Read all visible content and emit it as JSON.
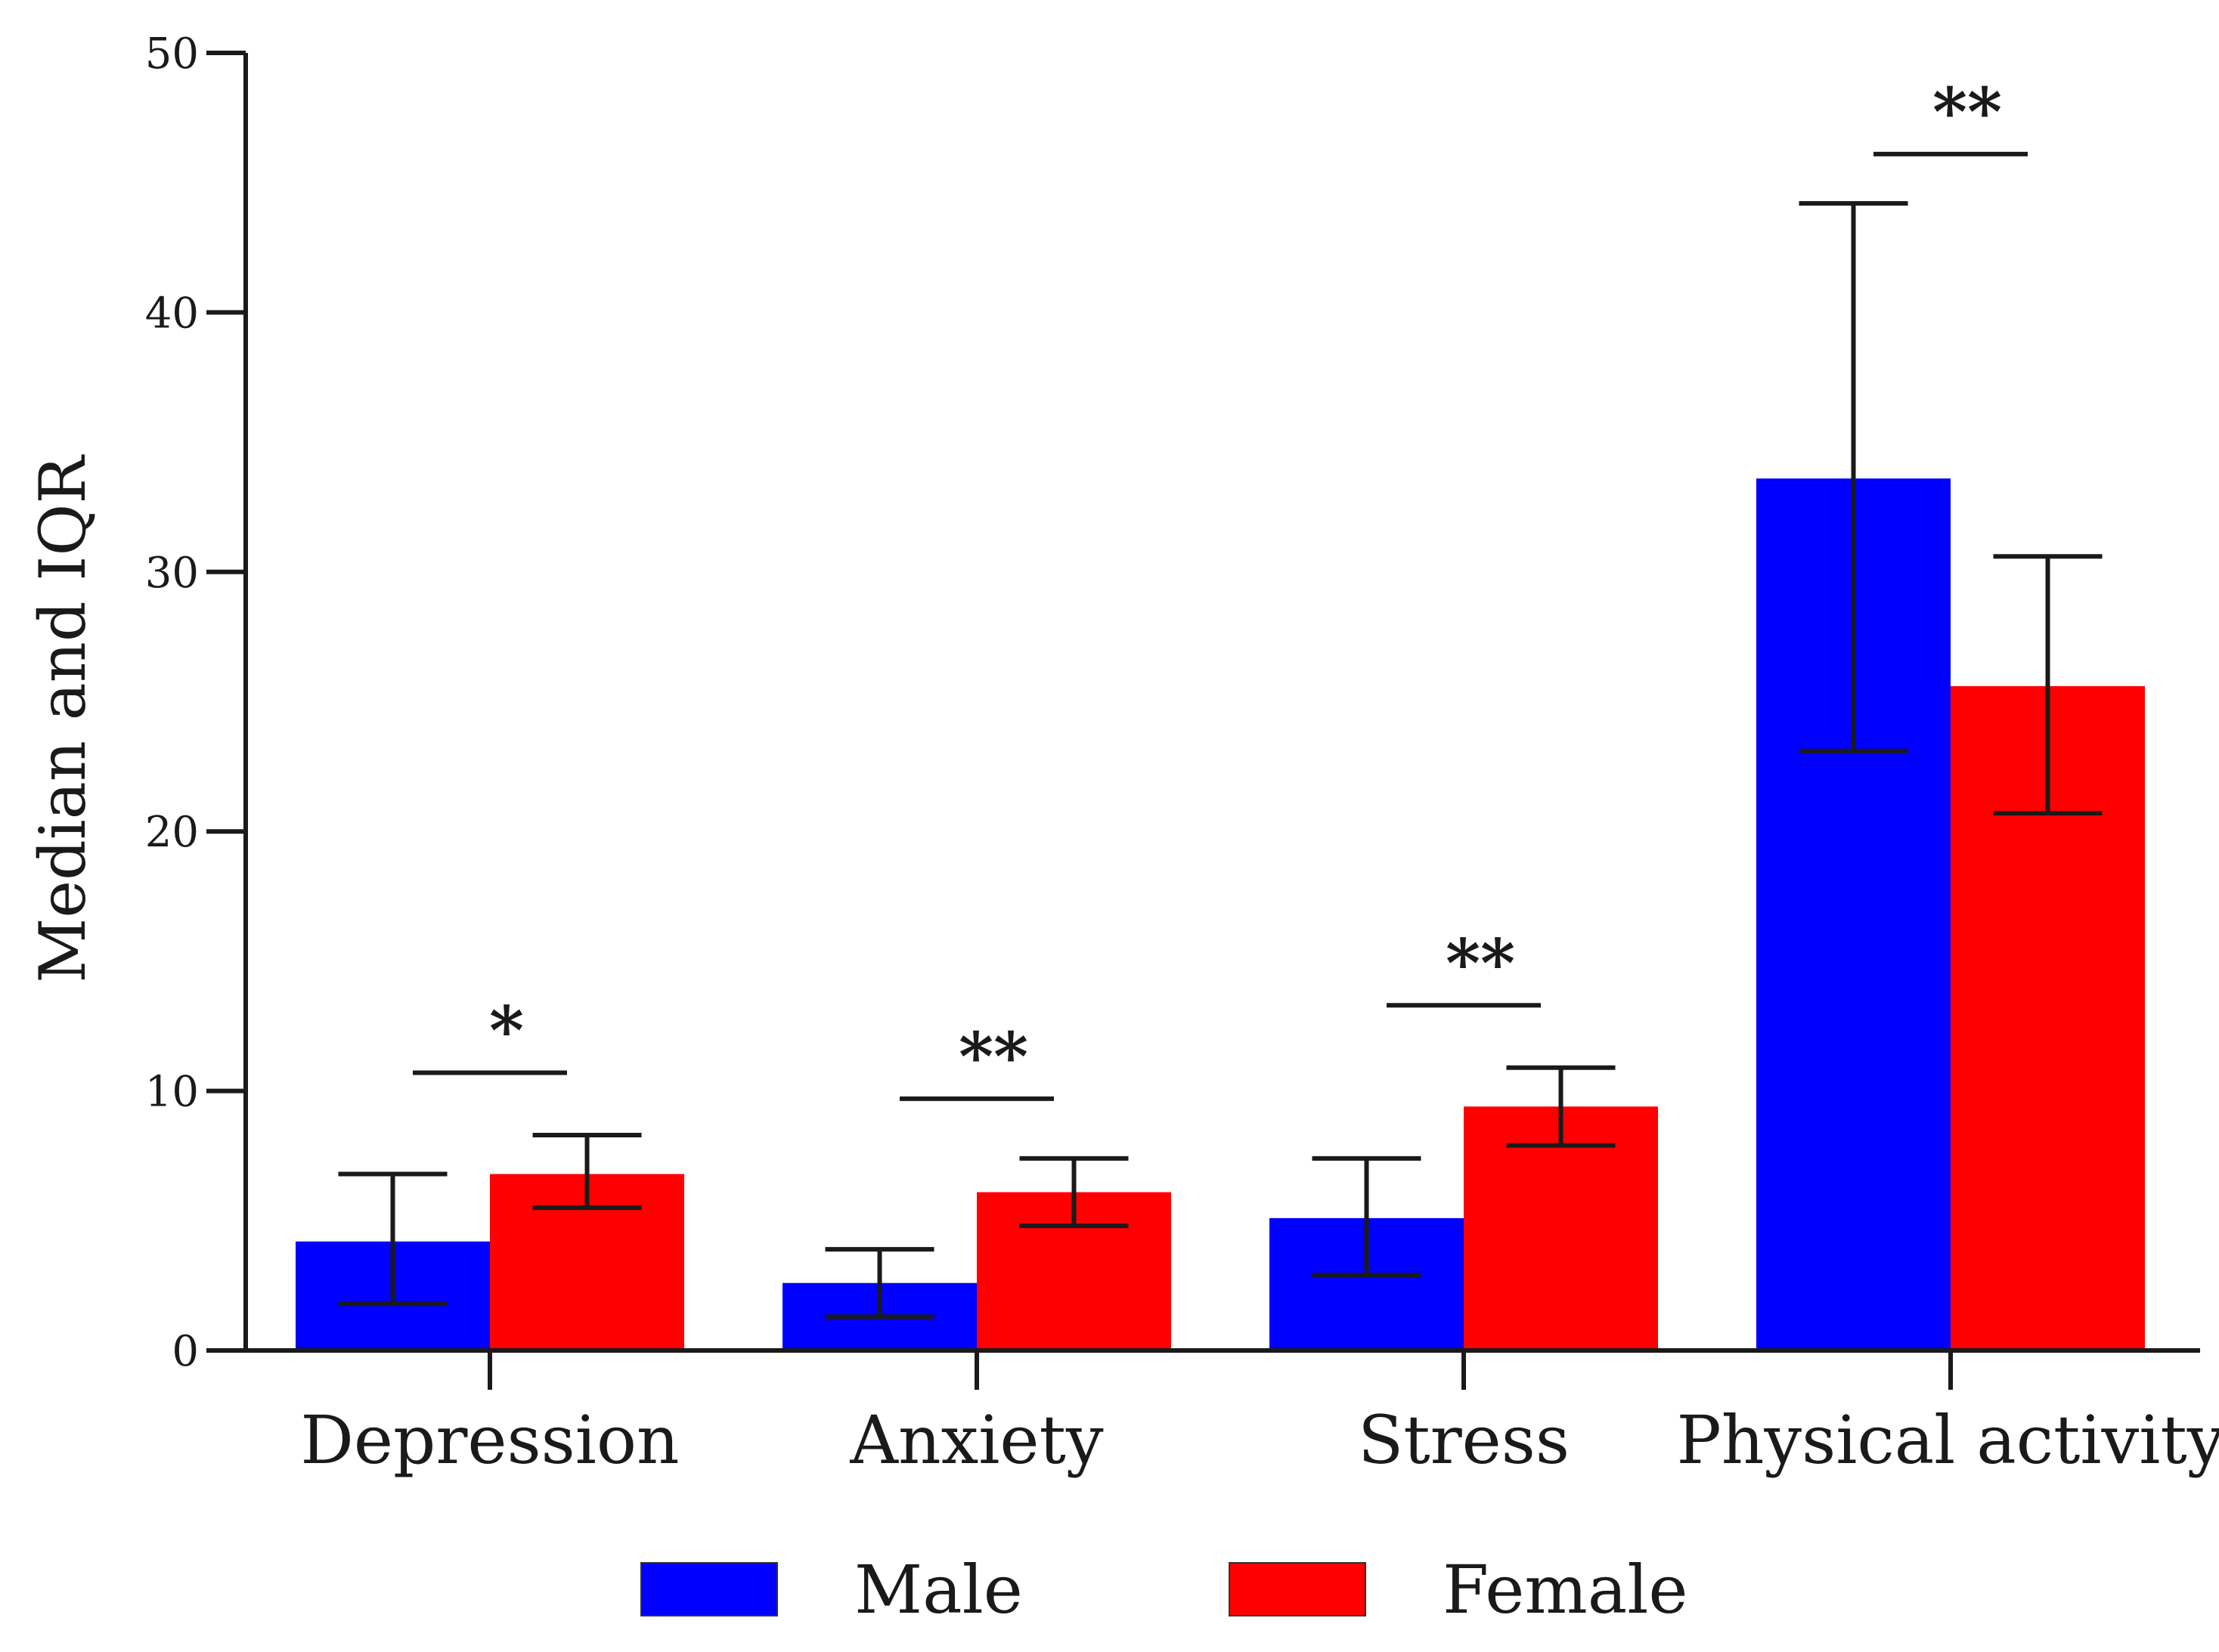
{
  "chart_data": {
    "type": "bar",
    "ylabel": "Median and IQR",
    "xlabel": "",
    "ylim": [
      0,
      50
    ],
    "yticks": [
      0,
      10,
      20,
      30,
      40,
      50
    ],
    "categories": [
      "Depression",
      "Anxiety",
      "Stress",
      "Physical activity"
    ],
    "series": [
      {
        "name": "Male",
        "color": "#0000ff",
        "values": [
          4.2,
          2.6,
          5.1,
          33.6
        ],
        "iqr_low": [
          1.8,
          1.3,
          2.9,
          23.1
        ],
        "iqr_high": [
          6.8,
          3.9,
          7.4,
          44.2
        ]
      },
      {
        "name": "Female",
        "color": "#ff0000",
        "values": [
          6.8,
          6.1,
          9.4,
          25.6
        ],
        "iqr_low": [
          5.5,
          4.8,
          7.9,
          20.7
        ],
        "iqr_high": [
          8.3,
          7.4,
          10.9,
          30.6
        ]
      }
    ],
    "significance": [
      {
        "category": "Depression",
        "label": "*",
        "y": 10.7
      },
      {
        "category": "Anxiety",
        "label": "**",
        "y": 9.7
      },
      {
        "category": "Stress",
        "label": "**",
        "y": 13.3
      },
      {
        "category": "Physical activity",
        "label": "**",
        "y": 46.1
      }
    ],
    "legend_position": "bottom",
    "grid": false
  }
}
